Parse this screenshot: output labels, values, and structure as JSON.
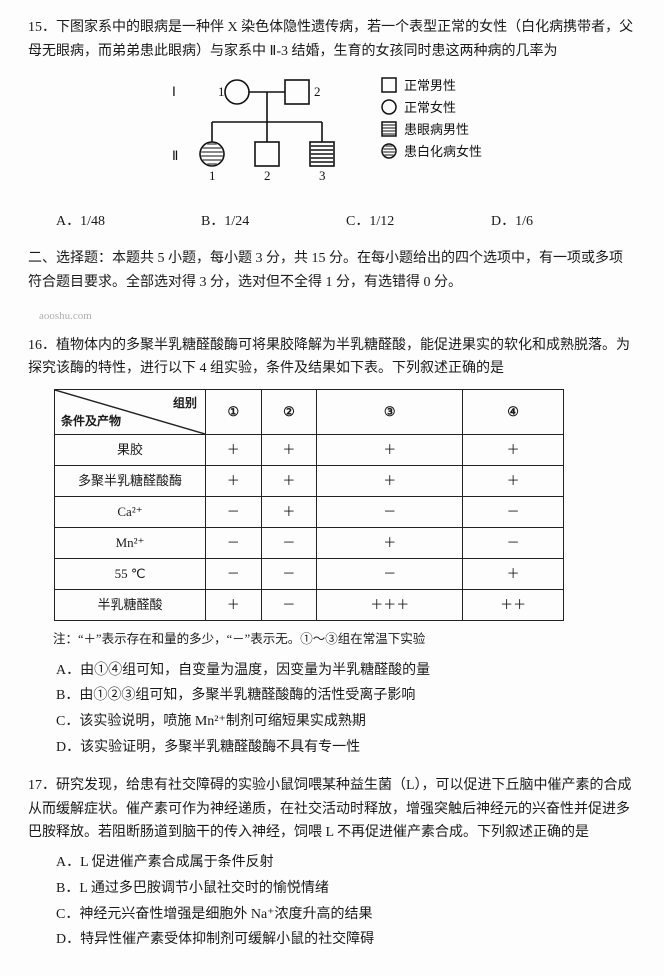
{
  "q15": {
    "num": "15．",
    "stem": "下图家系中的眼病是一种伴 X 染色体隐性遗传病，若一个表型正常的女性（白化病携带者，父母无眼病，而弟弟患此眼病）与家系中 Ⅱ-3 结婚，生育的女孩同时患这两种病的几率为",
    "legend": {
      "square_open": "正常男性",
      "circle_open": "正常女性",
      "square_fill": "患眼病男性",
      "circle_fill": "患白化病女性"
    },
    "roman_I": "Ⅰ",
    "roman_II": "Ⅱ",
    "n1": "1",
    "n2": "2",
    "n3": "3",
    "options": {
      "A": "A．1/48",
      "B": "B．1/24",
      "C": "C．1/12",
      "D": "D．1/6"
    }
  },
  "section2": {
    "head": "二、选择题：本题共 5 小题，每小题 3 分，共 15 分。在每小题给出的四个选项中，有一项或多项符合题目要求。全部选对得 3 分，选对但不全得 1 分，有选错得 0 分。",
    "watermark": "aooshu.com"
  },
  "q16": {
    "num": "16．",
    "stem": "植物体内的多聚半乳糖醛酸酶可将果胶降解为半乳糖醛酸，能促进果实的软化和成熟脱落。为探究该酶的特性，进行以下 4 组实验，条件及结果如下表。下列叙述正确的是",
    "table": {
      "header_diag_top": "组别",
      "header_diag_bot": "条件及产物",
      "cols": [
        "①",
        "②",
        "③",
        "④"
      ],
      "rows": [
        {
          "label": "果胶",
          "cells": [
            "＋",
            "＋",
            "＋",
            "＋"
          ]
        },
        {
          "label": "多聚半乳糖醛酸酶",
          "cells": [
            "＋",
            "＋",
            "＋",
            "＋"
          ]
        },
        {
          "label": "Ca²⁺",
          "cells": [
            "－",
            "＋",
            "－",
            "－"
          ]
        },
        {
          "label": "Mn²⁺",
          "cells": [
            "－",
            "－",
            "＋",
            "－"
          ]
        },
        {
          "label": "55 ℃",
          "cells": [
            "－",
            "－",
            "－",
            "＋"
          ]
        },
        {
          "label": "半乳糖醛酸",
          "cells": [
            "＋",
            "－",
            "＋＋＋",
            "＋＋"
          ]
        }
      ]
    },
    "note": "注：“＋”表示存在和量的多少，“－”表示无。①～③组在常温下实验",
    "options": {
      "A": "A．由①④组可知，自变量为温度，因变量为半乳糖醛酸的量",
      "B": "B．由①②③组可知，多聚半乳糖醛酸酶的活性受离子影响",
      "C": "C．该实验说明，喷施 Mn²⁺制剂可缩短果实成熟期",
      "D": "D．该实验证明，多聚半乳糖醛酸酶不具有专一性"
    }
  },
  "q17": {
    "num": "17．",
    "stem": "研究发现，给患有社交障碍的实验小鼠饲喂某种益生菌（L），可以促进下丘脑中催产素的合成从而缓解症状。催产素可作为神经递质，在社交活动时释放，增强突触后神经元的兴奋性并促进多巴胺释放。若阻断肠道到脑干的传入神经，饲喂 L 不再促进催产素合成。下列叙述正确的是",
    "options": {
      "A": "A．L 促进催产素合成属于条件反射",
      "B": "B．L 通过多巴胺调节小鼠社交时的愉悦情绪",
      "C": "C．神经元兴奋性增强是细胞外 Na⁺浓度升高的结果",
      "D": "D．特异性催产素受体抑制剂可缓解小鼠的社交障碍"
    }
  }
}
